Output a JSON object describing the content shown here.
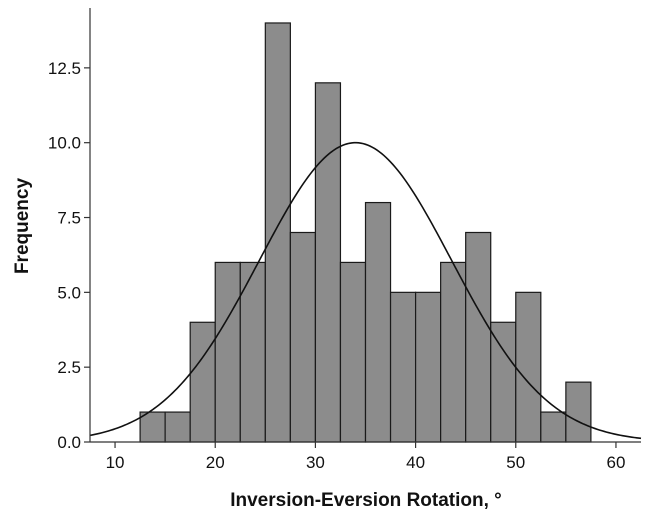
{
  "chart_data": {
    "type": "bar",
    "subtype": "histogram",
    "title": "",
    "xlabel": "Inversion-Eversion Rotation, °",
    "ylabel": "Frequency",
    "xlim": [
      7.5,
      62.5
    ],
    "ylim": [
      0,
      14.5
    ],
    "bin_width": 2.5,
    "bins": [
      {
        "x0": 12.5,
        "x1": 15.0,
        "count": 1
      },
      {
        "x0": 15.0,
        "x1": 17.5,
        "count": 1
      },
      {
        "x0": 17.5,
        "x1": 20.0,
        "count": 4
      },
      {
        "x0": 20.0,
        "x1": 22.5,
        "count": 6
      },
      {
        "x0": 22.5,
        "x1": 25.0,
        "count": 6
      },
      {
        "x0": 25.0,
        "x1": 27.5,
        "count": 14
      },
      {
        "x0": 27.5,
        "x1": 30.0,
        "count": 7
      },
      {
        "x0": 30.0,
        "x1": 32.5,
        "count": 12
      },
      {
        "x0": 32.5,
        "x1": 35.0,
        "count": 6
      },
      {
        "x0": 35.0,
        "x1": 37.5,
        "count": 8
      },
      {
        "x0": 37.5,
        "x1": 40.0,
        "count": 5
      },
      {
        "x0": 40.0,
        "x1": 42.5,
        "count": 5
      },
      {
        "x0": 42.5,
        "x1": 45.0,
        "count": 6
      },
      {
        "x0": 45.0,
        "x1": 47.5,
        "count": 7
      },
      {
        "x0": 47.5,
        "x1": 50.0,
        "count": 4
      },
      {
        "x0": 50.0,
        "x1": 52.5,
        "count": 5
      },
      {
        "x0": 52.5,
        "x1": 55.0,
        "count": 1
      },
      {
        "x0": 55.0,
        "x1": 57.5,
        "count": 2
      }
    ],
    "normal_curve": {
      "mean": 34.0,
      "peak": 10.0,
      "sd": 9.6
    },
    "x_ticks": [
      {
        "value": 10,
        "label": "10"
      },
      {
        "value": 20,
        "label": "20"
      },
      {
        "value": 30,
        "label": "30"
      },
      {
        "value": 40,
        "label": "40"
      },
      {
        "value": 50,
        "label": "50"
      },
      {
        "value": 60,
        "label": "60"
      }
    ],
    "y_ticks": [
      {
        "value": 0,
        "label": "0.0"
      },
      {
        "value": 2.5,
        "label": "2.5"
      },
      {
        "value": 5,
        "label": "5.0"
      },
      {
        "value": 7.5,
        "label": "7.5"
      },
      {
        "value": 10,
        "label": "10.0"
      },
      {
        "value": 12.5,
        "label": "12.5"
      }
    ],
    "grid": false,
    "legend": "none",
    "colors": {
      "bar_fill": "#8c8c8c",
      "bar_stroke": "#1a1a1a",
      "curve": "#111111",
      "axis": "#333333"
    }
  }
}
